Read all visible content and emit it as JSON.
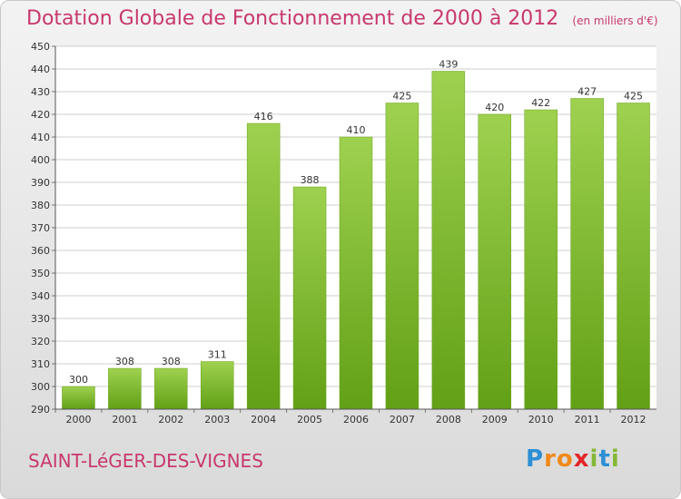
{
  "chart_data": {
    "type": "bar",
    "title": "Dotation Globale de Fonctionnement de 2000 à 2012",
    "subtitle": "(en milliers d'€)",
    "categories": [
      "2000",
      "2001",
      "2002",
      "2003",
      "2004",
      "2005",
      "2006",
      "2007",
      "2008",
      "2009",
      "2010",
      "2011",
      "2012"
    ],
    "values": [
      300,
      308,
      308,
      311,
      416,
      388,
      410,
      425,
      439,
      420,
      422,
      427,
      425
    ],
    "ylim": [
      290,
      450
    ],
    "yticks": [
      290,
      300,
      310,
      320,
      330,
      340,
      350,
      360,
      370,
      380,
      390,
      400,
      410,
      420,
      430,
      440,
      450
    ],
    "grid": true,
    "bar_color": "#8cc63f",
    "bar_color_dark": "#5e9a14"
  },
  "footer": {
    "commune": "SAINT-LéGER-DES-VIGNES",
    "logo_letters": [
      "P",
      "r",
      "o",
      "x",
      "i",
      "t",
      "i"
    ],
    "logo_colors": [
      "#2d8fd5",
      "#f08a1c",
      "#f08a1c",
      "#e2262a",
      "#86b837",
      "#2d8fd5",
      "#86b837"
    ]
  },
  "colors": {
    "accent": "#c8386e"
  }
}
